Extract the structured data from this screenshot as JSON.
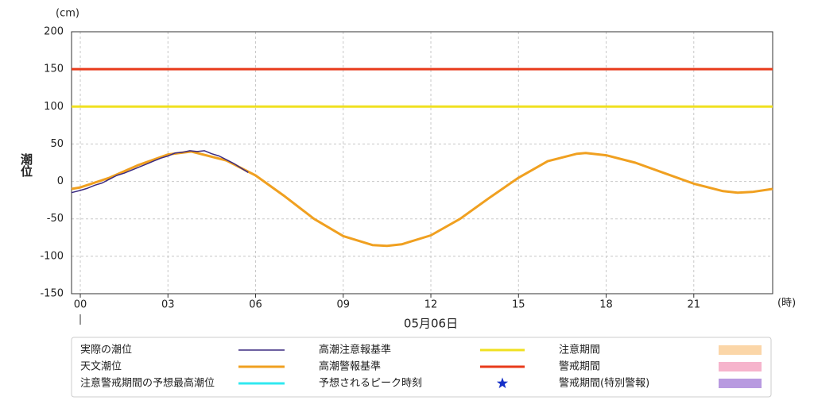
{
  "chart_data": {
    "type": "line",
    "y_unit": "(cm)",
    "x_unit": "(時)",
    "ylabel": "潮位",
    "date_label": "05月06日",
    "xlim": [
      -0.3,
      23.7
    ],
    "ylim": [
      -150,
      200
    ],
    "xticks": [
      {
        "value": 0,
        "label": "00"
      },
      {
        "value": 3,
        "label": "03"
      },
      {
        "value": 6,
        "label": "06"
      },
      {
        "value": 9,
        "label": "09"
      },
      12,
      15,
      18,
      21
    ],
    "yticks": [
      -150,
      -100,
      -50,
      0,
      50,
      100,
      150,
      200
    ],
    "grid": true,
    "series": [
      {
        "name": "実際の潮位",
        "color": "#3b2a80",
        "x": [
          -0.3,
          0,
          0.25,
          0.5,
          0.75,
          1,
          1.25,
          1.5,
          1.75,
          2,
          2.25,
          2.5,
          2.75,
          3,
          3.25,
          3.5,
          3.75,
          4,
          4.25,
          4.5,
          4.75,
          5,
          5.25,
          5.5,
          5.75
        ],
        "values": [
          -15,
          -12,
          -9,
          -5,
          -2,
          3,
          8,
          11,
          15,
          19,
          23,
          27,
          31,
          34,
          38,
          39,
          41,
          40,
          41,
          37,
          34,
          29,
          24,
          18,
          12
        ]
      },
      {
        "name": "天文潮位",
        "color": "#f0a020",
        "x": [
          -0.3,
          0,
          1,
          2,
          3,
          3.8,
          5,
          6,
          7,
          8,
          9,
          10,
          10.5,
          11,
          12,
          13,
          14,
          15,
          16,
          17,
          17.3,
          18,
          19,
          20,
          21,
          22,
          22.5,
          23,
          23.7
        ],
        "values": [
          -10,
          -8,
          5,
          22,
          36,
          40,
          28,
          8,
          -20,
          -50,
          -73,
          -85,
          -86,
          -84,
          -72,
          -50,
          -22,
          5,
          27,
          37,
          38,
          35,
          25,
          11,
          -3,
          -13,
          -15,
          -14,
          -10
        ]
      },
      {
        "name": "高潮注意報基準",
        "color": "#f0e020",
        "hline": 100
      },
      {
        "name": "高潮警報基準",
        "color": "#e83a1a",
        "hline": 150
      }
    ],
    "legend_items": [
      {
        "name": "注意警戒期間の予想最高潮位",
        "color": "#30e8f0",
        "marker": "line"
      },
      {
        "name": "予想されるピーク時刻",
        "color": "#1530c8",
        "marker": "star"
      },
      {
        "name": "注意期間",
        "color": "#fbd6a8",
        "marker": "box"
      },
      {
        "name": "警戒期間",
        "color": "#f6b4cc",
        "marker": "box"
      },
      {
        "name": "警戒期間(特別警報)",
        "color": "#b89ae0",
        "marker": "box"
      }
    ]
  }
}
